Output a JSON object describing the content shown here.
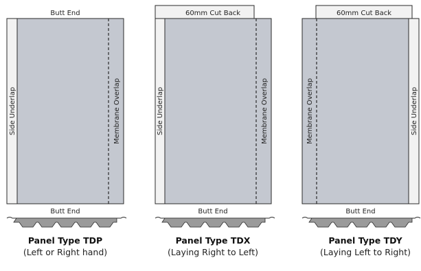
{
  "colors": {
    "panel_fill": "#c4c8d0",
    "strip_fill": "#f2f2f2",
    "outline": "#2a2a2a",
    "profile_fill": "#9a9a9a"
  },
  "panels": [
    {
      "top_label": "Butt End",
      "left_side_label": "Side Underlap",
      "right_side_label": "Membrane Overlap",
      "bottom_label": "Butt End",
      "title": "Panel Type TDP",
      "subtitle": "(Left or Right hand)"
    },
    {
      "top_label": "60mm Cut Back",
      "left_side_label": "Side Underlap",
      "right_side_label": "Membrane Overlap",
      "bottom_label": "Butt End",
      "title": "Panel Type TDX",
      "subtitle": "(Laying Right to Left)"
    },
    {
      "top_label": "60mm Cut Back",
      "left_side_label": "Membrane Overlap",
      "right_side_label": "Side Underlap",
      "bottom_label": "Butt End",
      "title": "Panel Type TDY",
      "subtitle": "(Laying Left to Right)"
    }
  ]
}
